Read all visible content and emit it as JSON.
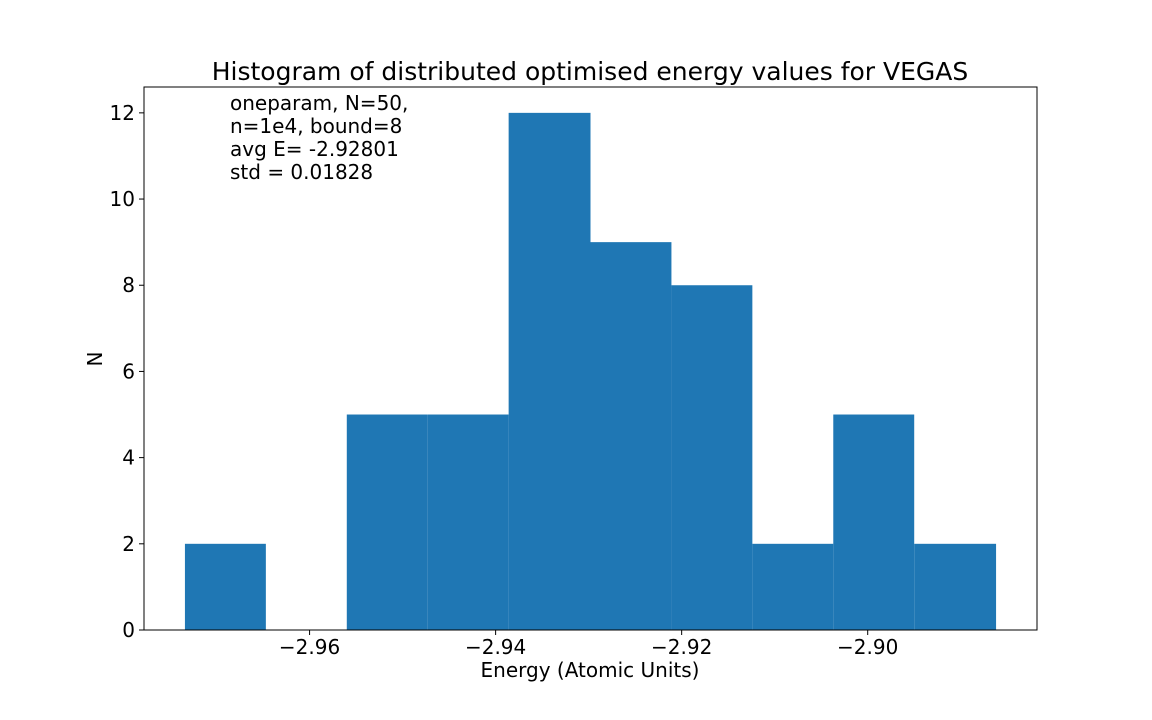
{
  "chart_data": {
    "type": "bar",
    "title": "Histogram of distributed optimised energy values for VEGAS",
    "xlabel": "Energy (Atomic Units)",
    "ylabel": "N",
    "xlim": [
      -2.9778,
      -2.8818
    ],
    "ylim": [
      0,
      12.6
    ],
    "x_ticks": [
      {
        "value": -2.96,
        "label": "−2.96"
      },
      {
        "value": -2.94,
        "label": "−2.94"
      },
      {
        "value": -2.92,
        "label": "−2.92"
      },
      {
        "value": -2.9,
        "label": "−2.90"
      }
    ],
    "y_ticks": [
      0,
      2,
      4,
      6,
      8,
      10,
      12
    ],
    "bins": [
      {
        "start": -2.9734,
        "end": -2.9647,
        "count": 2
      },
      {
        "start": -2.9647,
        "end": -2.956,
        "count": 0
      },
      {
        "start": -2.956,
        "end": -2.9473,
        "count": 5
      },
      {
        "start": -2.9473,
        "end": -2.9386,
        "count": 5
      },
      {
        "start": -2.9386,
        "end": -2.9298,
        "count": 12
      },
      {
        "start": -2.9298,
        "end": -2.9211,
        "count": 9
      },
      {
        "start": -2.9211,
        "end": -2.9124,
        "count": 8
      },
      {
        "start": -2.9124,
        "end": -2.9037,
        "count": 2
      },
      {
        "start": -2.9037,
        "end": -2.895,
        "count": 5
      },
      {
        "start": -2.895,
        "end": -2.8862,
        "count": 2
      }
    ],
    "bar_color": "#1f77b4",
    "grid": false,
    "annotation": [
      "oneparam, N=50,",
      "n=1e4, bound=8",
      "avg E= -2.92801",
      "std = 0.01828"
    ]
  }
}
